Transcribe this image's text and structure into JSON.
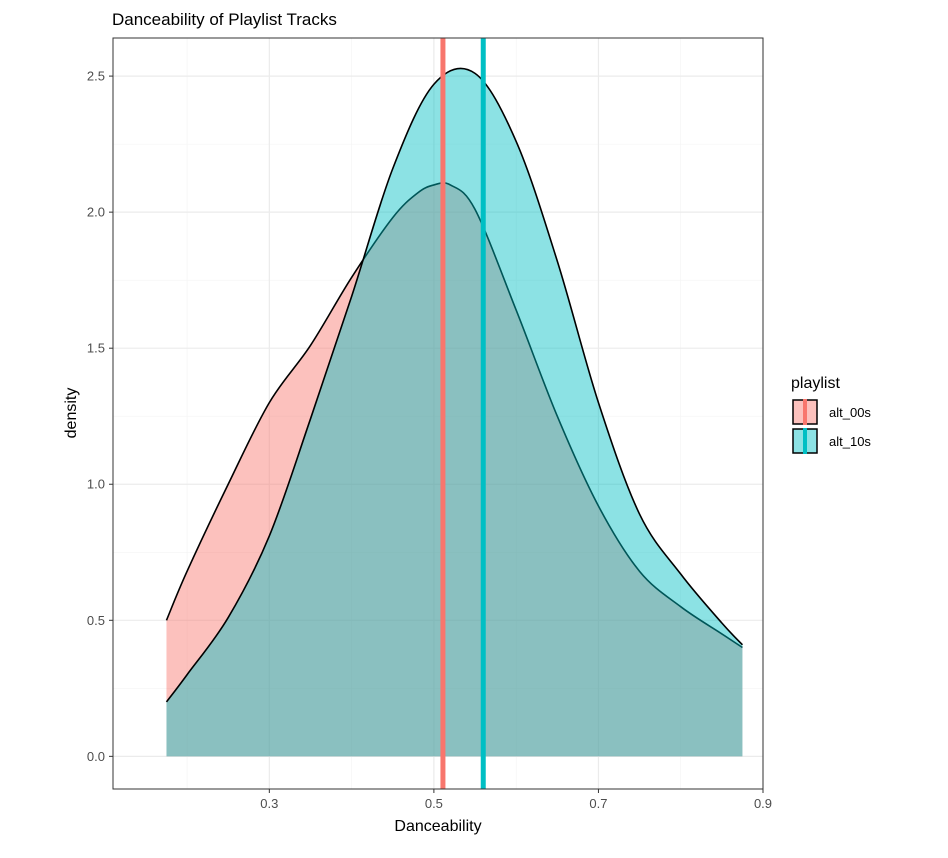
{
  "chart_data": {
    "type": "area",
    "title": "Danceability of Playlist Tracks",
    "xlabel": "Danceability",
    "ylabel": "density",
    "xlim": [
      0.11,
      0.9
    ],
    "ylim": [
      -0.12,
      2.64
    ],
    "x_ticks": [
      0.3,
      0.5,
      0.7,
      0.9
    ],
    "x_tick_labels": [
      "0.3",
      "0.5",
      "0.7",
      "0.9"
    ],
    "y_ticks": [
      0.0,
      0.5,
      1.0,
      1.5,
      2.0,
      2.5
    ],
    "y_tick_labels": [
      "0.0",
      "0.5",
      "1.0",
      "1.5",
      "2.0",
      "2.5"
    ],
    "grid": true,
    "legend": {
      "title": "playlist",
      "position": "right"
    },
    "series": [
      {
        "name": "alt_00s",
        "color": "#F8766D",
        "mean": 0.511,
        "x": [
          0.175,
          0.2,
          0.25,
          0.3,
          0.35,
          0.4,
          0.45,
          0.48,
          0.5,
          0.52,
          0.55,
          0.6,
          0.65,
          0.7,
          0.75,
          0.8,
          0.85,
          0.875
        ],
        "y": [
          0.5,
          0.68,
          1.0,
          1.3,
          1.51,
          1.76,
          1.98,
          2.07,
          2.1,
          2.1,
          2.01,
          1.64,
          1.25,
          0.92,
          0.68,
          0.55,
          0.45,
          0.4
        ]
      },
      {
        "name": "alt_10s",
        "color": "#00BFC4",
        "mean": 0.56,
        "x": [
          0.175,
          0.2,
          0.25,
          0.3,
          0.35,
          0.4,
          0.45,
          0.5,
          0.55,
          0.6,
          0.65,
          0.7,
          0.75,
          0.8,
          0.85,
          0.875
        ],
        "y": [
          0.2,
          0.3,
          0.51,
          0.81,
          1.24,
          1.69,
          2.16,
          2.47,
          2.51,
          2.26,
          1.82,
          1.3,
          0.89,
          0.67,
          0.49,
          0.41
        ]
      }
    ]
  }
}
